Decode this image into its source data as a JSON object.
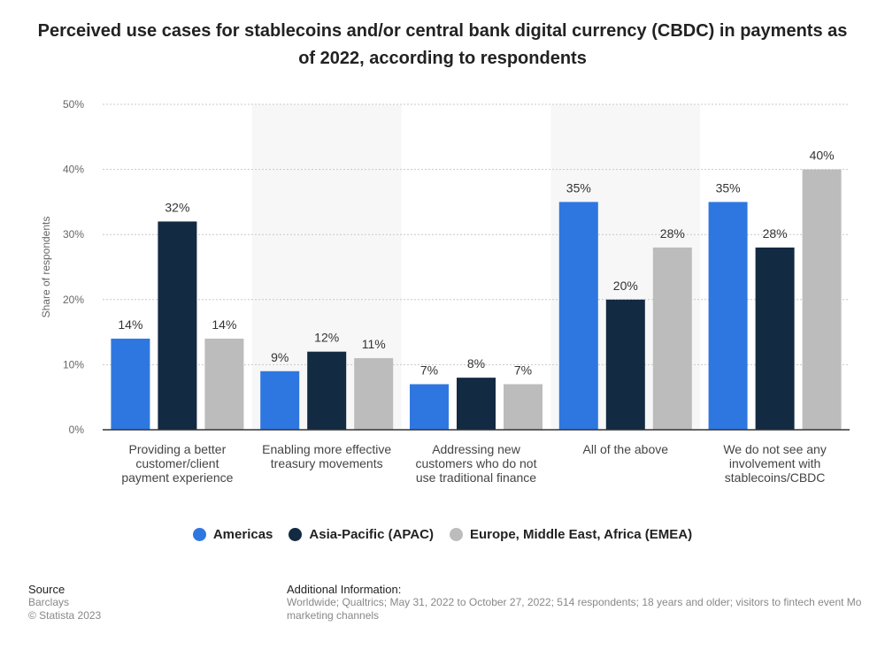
{
  "chart_data": {
    "type": "bar",
    "title": "Perceived use cases for stablecoins and/or central bank digital currency (CBDC) in payments as of 2022, according to respondents",
    "xlabel": "",
    "ylabel": "Share of respondents",
    "ylim": [
      0,
      50
    ],
    "yticks": [
      "0%",
      "10%",
      "20%",
      "30%",
      "40%",
      "50%"
    ],
    "categories": [
      "Providing a better customer/client payment experience",
      "Enabling more effective treasury movements",
      "Addressing new customers who do not use traditional finance",
      "All of the above",
      "We do not see any involvement with stablecoins/CBDC"
    ],
    "category_lines": [
      [
        "Providing a better",
        "customer/client",
        "payment experience"
      ],
      [
        "Enabling more effective",
        "treasury movements"
      ],
      [
        "Addressing new",
        "customers who do not",
        "use traditional finance"
      ],
      [
        "All of the above"
      ],
      [
        "We do not see any",
        "involvement with",
        "stablecoins/CBDC"
      ]
    ],
    "series": [
      {
        "name": "Americas",
        "color": "#2f77e0",
        "values": [
          14,
          9,
          7,
          35,
          35
        ]
      },
      {
        "name": "Asia-Pacific (APAC)",
        "color": "#132a43",
        "values": [
          32,
          12,
          8,
          20,
          28
        ]
      },
      {
        "name": "Europe, Middle East, Africa (EMEA)",
        "color": "#bcbcbc",
        "values": [
          14,
          11,
          7,
          28,
          40
        ]
      }
    ],
    "legend_position": "bottom",
    "grid": true
  },
  "footer": {
    "source_heading": "Source",
    "source": "Barclays",
    "copyright": "© Statista 2023",
    "info_heading": "Additional Information:",
    "info_line1": "Worldwide; Qualtrics; May 31, 2022 to October 27, 2022; 514 respondents; 18 years and older; visitors to fintech event Mo",
    "info_line2": "marketing channels"
  }
}
